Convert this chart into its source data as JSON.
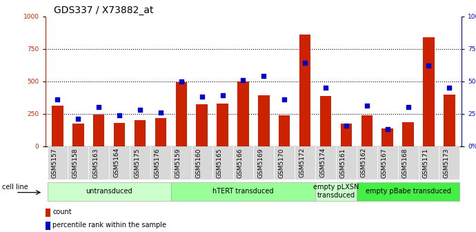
{
  "title": "GDS337 / X73882_at",
  "samples": [
    "GSM5157",
    "GSM5158",
    "GSM5163",
    "GSM5164",
    "GSM5175",
    "GSM5176",
    "GSM5159",
    "GSM5160",
    "GSM5165",
    "GSM5166",
    "GSM5169",
    "GSM5170",
    "GSM5172",
    "GSM5174",
    "GSM5161",
    "GSM5162",
    "GSM5167",
    "GSM5168",
    "GSM5171",
    "GSM5173"
  ],
  "counts": [
    310,
    175,
    245,
    180,
    200,
    215,
    490,
    325,
    330,
    500,
    390,
    240,
    860,
    385,
    175,
    240,
    135,
    185,
    840,
    395
  ],
  "percentiles": [
    36,
    21,
    30,
    24,
    28,
    26,
    50,
    38,
    39,
    51,
    54,
    36,
    64,
    45,
    16,
    31,
    13,
    30,
    62,
    45
  ],
  "groups": [
    {
      "label": "untransduced",
      "start": 0,
      "end": 6,
      "color": "#ccffcc"
    },
    {
      "label": "hTERT transduced",
      "start": 6,
      "end": 13,
      "color": "#99ff99"
    },
    {
      "label": "empty pLXSN\ntransduced",
      "start": 13,
      "end": 15,
      "color": "#ccffcc"
    },
    {
      "label": "empty pBabe transduced",
      "start": 15,
      "end": 20,
      "color": "#44ee44"
    }
  ],
  "bar_color": "#cc2200",
  "dot_color": "#0000cc",
  "left_ylim": [
    0,
    1000
  ],
  "right_ylim": [
    0,
    100
  ],
  "left_yticks": [
    0,
    250,
    500,
    750,
    1000
  ],
  "right_yticks": [
    0,
    25,
    50,
    75,
    100
  ],
  "dotted_line_color": "#555555",
  "dotted_lines": [
    250,
    500,
    750
  ],
  "cell_line_label": "cell line",
  "legend_count_label": "count",
  "legend_pct_label": "percentile rank within the sample",
  "title_fontsize": 10,
  "tick_fontsize": 6.5,
  "group_fontsize": 7,
  "legend_fontsize": 7,
  "bar_width": 0.55,
  "xtick_bg": "#d8d8d8"
}
